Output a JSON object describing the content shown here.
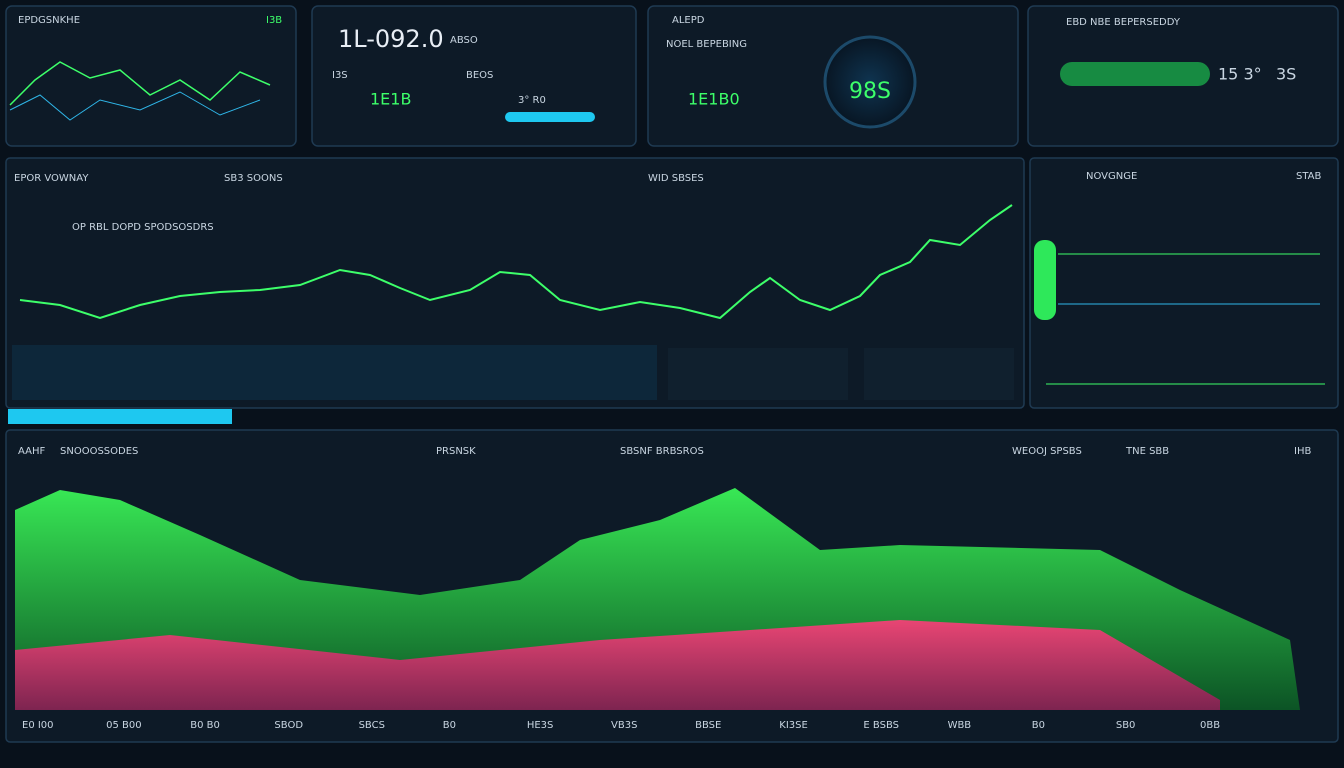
{
  "top_panels": [
    {
      "title": "EPDGSNKHE",
      "badge": "I3B"
    },
    {
      "value": "1L-092.0",
      "label": "ABSO",
      "sublabels": [
        "I3S",
        "BEOS"
      ],
      "readouts": [
        "1E1B",
        "3° R0"
      ]
    },
    {
      "title": "ALEPD",
      "subtitle": "NOEL BEPEBING",
      "value": "1E1B0",
      "gauge": "98S"
    },
    {
      "title": "EBD NBE BEPERSEDDY",
      "readouts": [
        "15 3°",
        "3S"
      ]
    }
  ],
  "main_panel": {
    "title": "EPOR VOWNAY",
    "tabs": [
      "SB3 SOONS",
      "WID SBSES"
    ],
    "caption": "OP RBL DOPD SPODSOSDRS"
  },
  "side_panel": {
    "title": "NOVGNGE",
    "badge": "STAB"
  },
  "bottom_panel": {
    "title": "AAHF",
    "subtitle": "SNOOOSSODES",
    "tabs": [
      "PRSNSK",
      "SBSNF BRBSROS",
      "WEOOJ SPSBS",
      "TNE SBB"
    ],
    "badge": "IHB",
    "axis_labels": [
      "E0 I00",
      "05 B00",
      "B0 B0",
      "SBOD",
      "SBCS",
      "B0",
      "HE3S",
      "VB3S",
      "BBSE",
      "KI3SE",
      "E BSBS",
      "WBB",
      "B0",
      "SB0",
      "0BB"
    ]
  }
}
